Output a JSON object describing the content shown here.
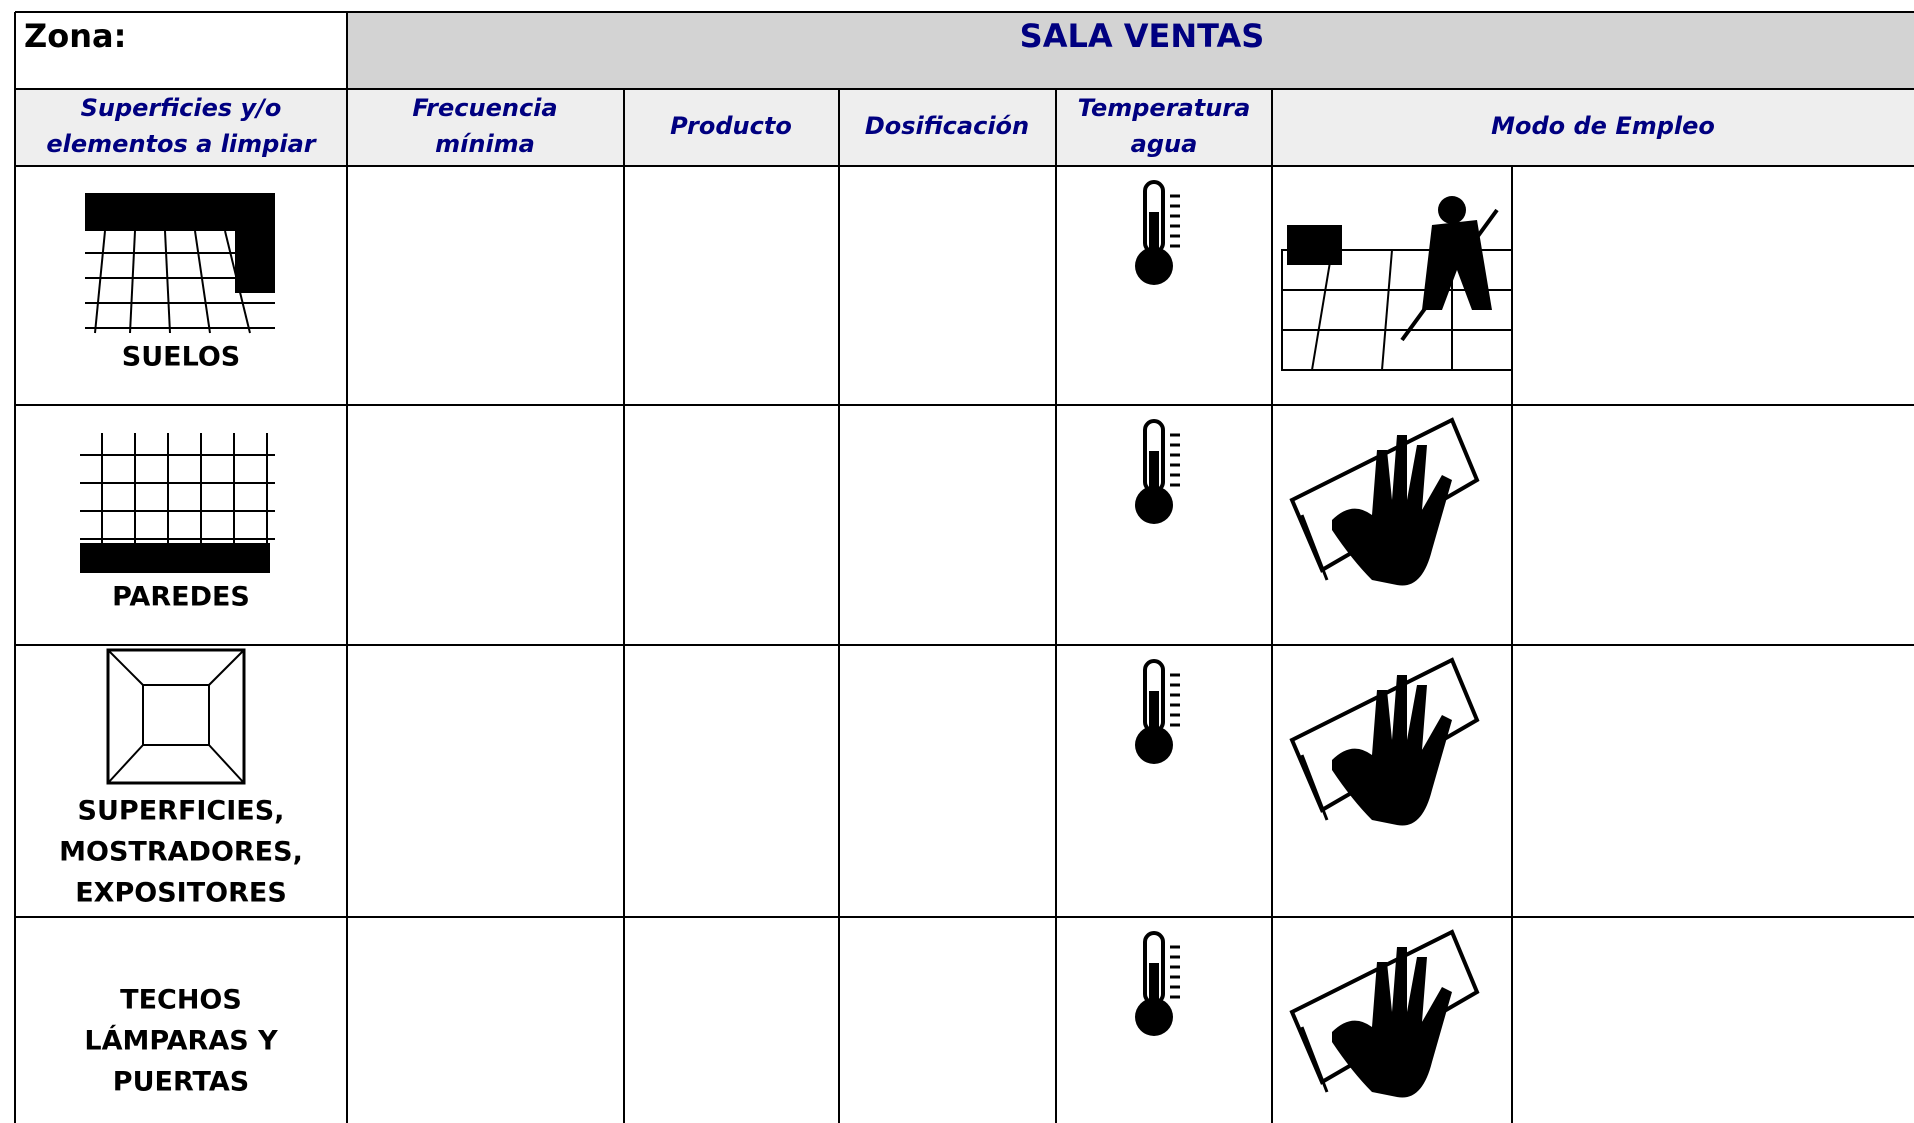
{
  "header": {
    "zone_label": "Zona:",
    "zone": "SALA VENTAS"
  },
  "table": {
    "columns": [
      [
        "Superficies y/o",
        "elementos a limpiar"
      ],
      [
        "Frecuencia",
        "mínima"
      ],
      [
        "Producto"
      ],
      [
        "Dosificación"
      ],
      [
        "Temperatura",
        "agua"
      ],
      [
        "Modo de Empleo"
      ]
    ],
    "rows": [
      [
        "SUELOS"
      ],
      [
        "PAREDES"
      ],
      [
        "SUPERFICIES,",
        "MOSTRADORES,",
        "EXPOSITORES"
      ],
      [
        "TECHOS",
        "LÁMPARAS Y",
        "PUERTAS"
      ]
    ]
  }
}
